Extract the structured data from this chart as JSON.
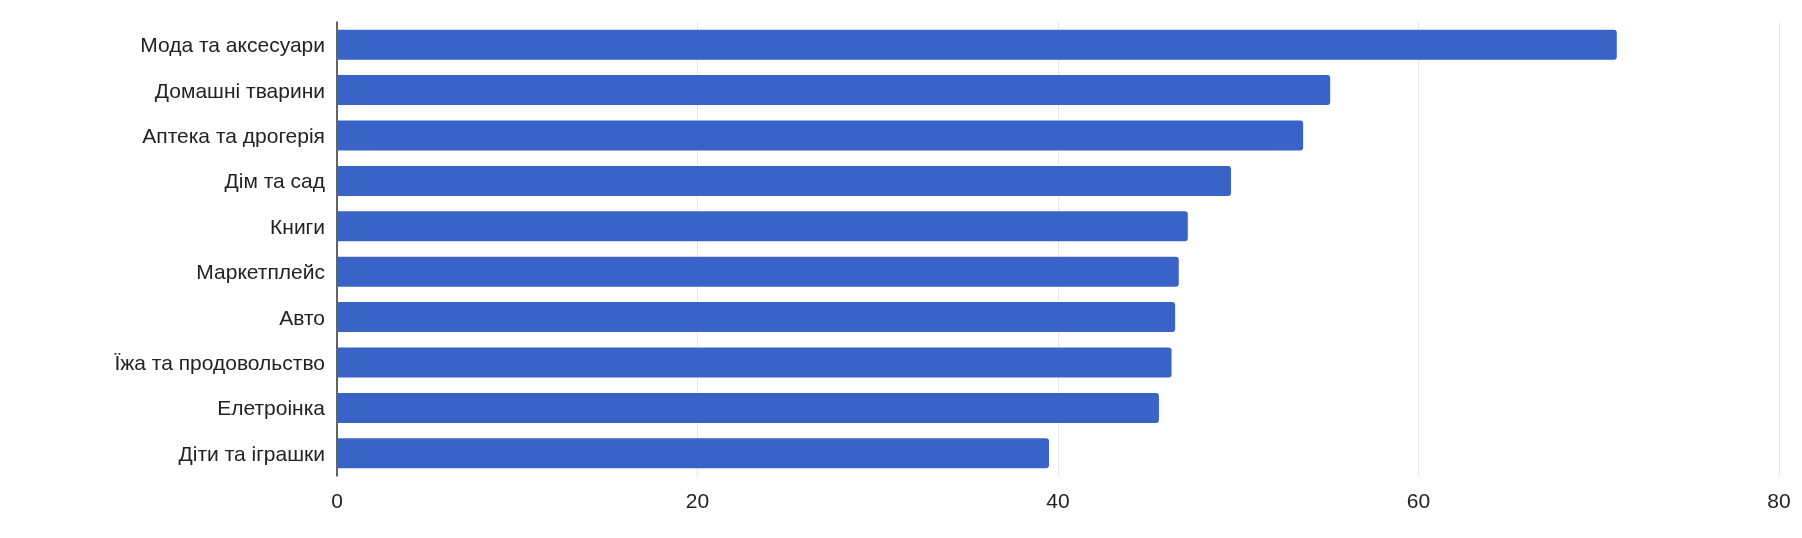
{
  "chart_data": {
    "type": "bar",
    "orientation": "horizontal",
    "categories": [
      "Мода та аксесуари",
      "Домашні тварини",
      "Аптека та дрогерія",
      "Дім та сад",
      "Книги",
      "Маркетплейс",
      "Авто",
      "Їжа та продовольство",
      "Елетроінка",
      "Діти та іграшки"
    ],
    "values": [
      71.0,
      55.1,
      53.6,
      49.6,
      47.2,
      46.7,
      46.5,
      46.3,
      45.6,
      39.5
    ],
    "color": "#3a63c8",
    "xlim": [
      0,
      80
    ],
    "xticks": [
      0,
      20,
      40,
      60,
      80
    ],
    "grid": "x"
  }
}
